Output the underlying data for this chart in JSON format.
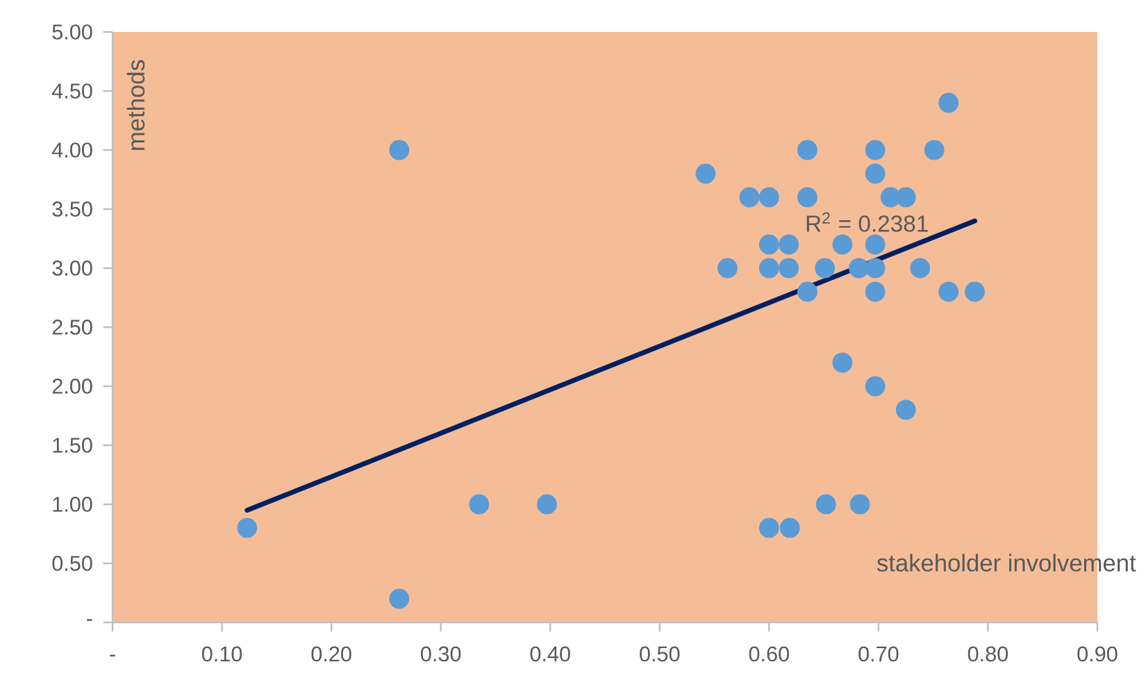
{
  "chart_data": {
    "type": "scatter",
    "xlabel": "stakeholder involvement",
    "ylabel": "methods",
    "xlim": [
      0,
      0.9
    ],
    "ylim": [
      0,
      5
    ],
    "xticks": [
      {
        "value": 0,
        "label": "-"
      },
      {
        "value": 0.1,
        "label": "0.10"
      },
      {
        "value": 0.2,
        "label": "0.20"
      },
      {
        "value": 0.3,
        "label": "0.30"
      },
      {
        "value": 0.4,
        "label": "0.40"
      },
      {
        "value": 0.5,
        "label": "0.50"
      },
      {
        "value": 0.6,
        "label": "0.60"
      },
      {
        "value": 0.7,
        "label": "0.70"
      },
      {
        "value": 0.8,
        "label": "0.80"
      },
      {
        "value": 0.9,
        "label": "0.90"
      }
    ],
    "yticks": [
      {
        "value": 0,
        "label": "-"
      },
      {
        "value": 0.5,
        "label": "0.50"
      },
      {
        "value": 1,
        "label": "1.00"
      },
      {
        "value": 1.5,
        "label": "1.50"
      },
      {
        "value": 2,
        "label": "2.00"
      },
      {
        "value": 2.5,
        "label": "2.50"
      },
      {
        "value": 3,
        "label": "3.00"
      },
      {
        "value": 3.5,
        "label": "3.50"
      },
      {
        "value": 4,
        "label": "4.00"
      },
      {
        "value": 4.5,
        "label": "4.50"
      },
      {
        "value": 5,
        "label": "5.00"
      }
    ],
    "marker": "circle",
    "series": [
      {
        "color": "#5b9bd5",
        "x": [
          0.123,
          0.262,
          0.262,
          0.335,
          0.397,
          0.542,
          0.582,
          0.6,
          0.6,
          0.6,
          0.6,
          0.619,
          0.618,
          0.618,
          0.562,
          0.635,
          0.635,
          0.635,
          0.652,
          0.651,
          0.667,
          0.667,
          0.682,
          0.683,
          0.697,
          0.697,
          0.697,
          0.697,
          0.697,
          0.697,
          0.711,
          0.725,
          0.725,
          0.738,
          0.751,
          0.764,
          0.764,
          0.788
        ],
        "values": [
          0.8,
          4.0,
          0.2,
          1.0,
          1.0,
          3.8,
          3.6,
          3.6,
          3.2,
          3.0,
          0.8,
          0.8,
          3.2,
          3.0,
          3.0,
          4.0,
          3.6,
          2.8,
          1.0,
          3.0,
          3.2,
          2.2,
          3.0,
          1.0,
          4.0,
          3.8,
          3.2,
          3.0,
          2.8,
          2.0,
          3.6,
          3.6,
          1.8,
          3.0,
          4.0,
          4.4,
          2.8,
          2.8
        ]
      },
      {
        "type": "line",
        "color": "#002060",
        "marker": "none",
        "x": [
          0.123,
          0.788
        ],
        "values": [
          0.95,
          3.4
        ]
      }
    ],
    "annotations": [
      "R$^{2}$ = 0.2381"
    ]
  }
}
